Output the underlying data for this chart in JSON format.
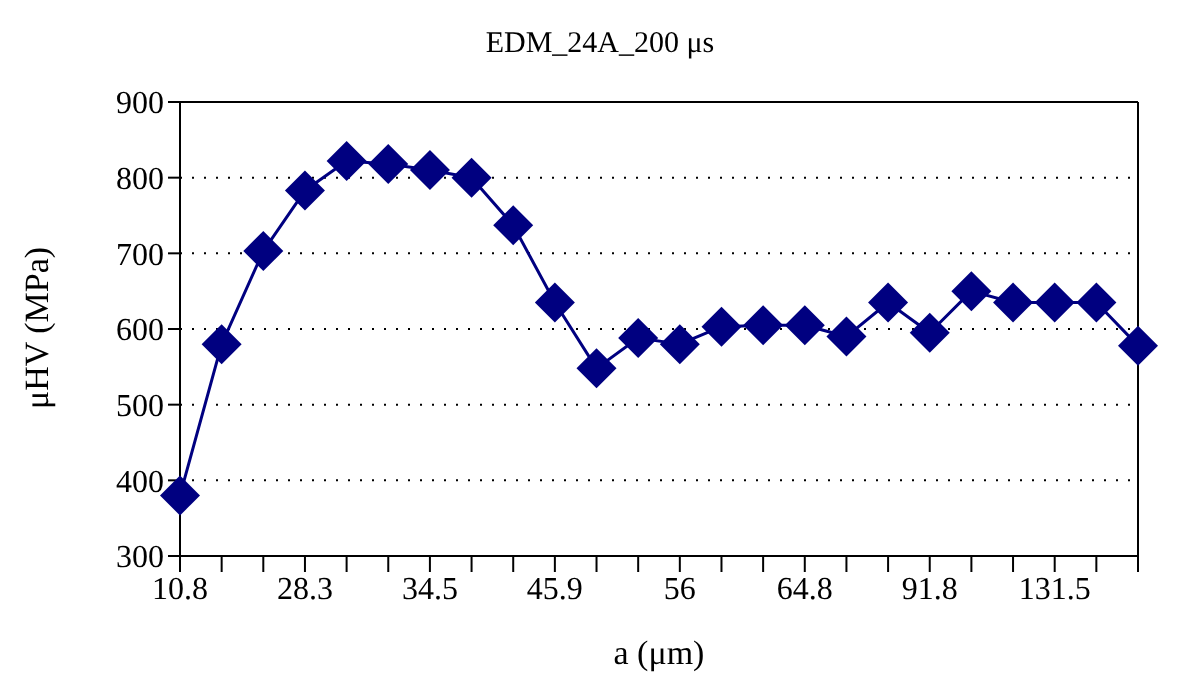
{
  "chart_data": {
    "type": "line",
    "title": "EDM_24A_200 μs",
    "xlabel": "a (μm)",
    "ylabel": "μHV (MPa)",
    "categories": [
      "10.8",
      null,
      null,
      "28.3",
      null,
      null,
      "34.5",
      null,
      null,
      "45.9",
      null,
      null,
      "56",
      null,
      null,
      "64.8",
      null,
      null,
      "91.8",
      null,
      null,
      "131.5",
      null,
      null
    ],
    "series": [
      {
        "color": "#000080",
        "values": [
          380,
          580,
          703,
          783,
          822,
          818,
          810,
          800,
          737,
          635,
          548,
          588,
          580,
          603,
          605,
          605,
          590,
          635,
          595,
          650,
          635,
          635,
          635,
          578
        ]
      }
    ],
    "ylim": [
      300,
      900
    ],
    "yticks": [
      300,
      400,
      500,
      600,
      700,
      800,
      900
    ],
    "grid": "y",
    "marker": "diamond",
    "line_style": "solid",
    "legend": false
  }
}
